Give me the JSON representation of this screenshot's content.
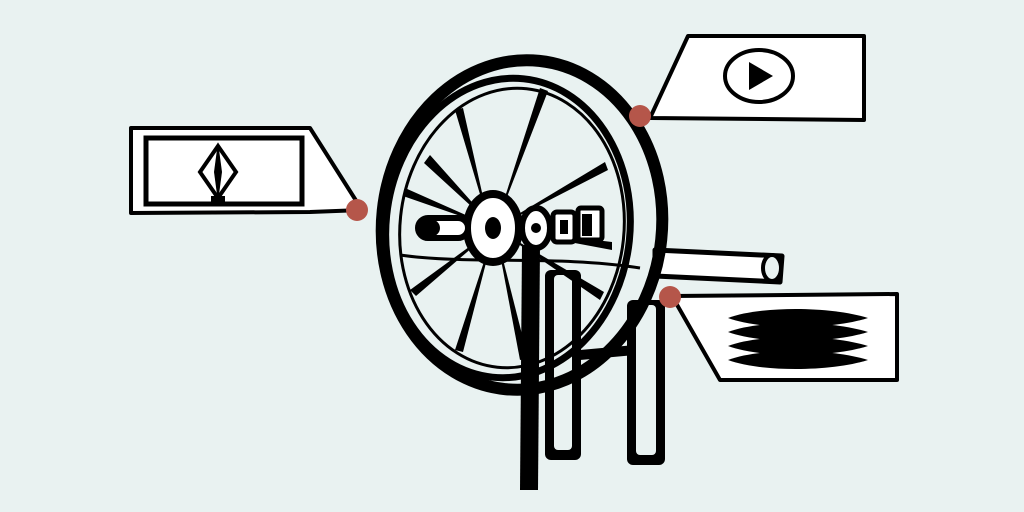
{
  "colors": {
    "background": "#e9f2f1",
    "ink": "#000000",
    "paper": "#ffffff",
    "hotspot": "#b5564a"
  },
  "callouts": [
    {
      "id": "left",
      "icon": "compass-icon"
    },
    {
      "id": "top-right",
      "icon": "play-icon"
    },
    {
      "id": "right",
      "icon": "text-lines-icon"
    }
  ]
}
